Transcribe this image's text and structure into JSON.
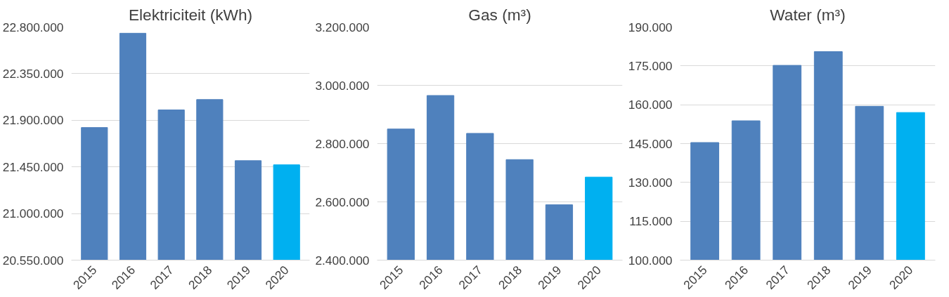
{
  "chart_data": [
    {
      "type": "bar",
      "title": "Elektriciteit (kWh)",
      "categories": [
        "2015",
        "2016",
        "2017",
        "2018",
        "2019",
        "2020"
      ],
      "values": [
        21830000,
        22740000,
        22000000,
        22100000,
        21510000,
        21470000
      ],
      "colors": [
        "#4f81bd",
        "#4f81bd",
        "#4f81bd",
        "#4f81bd",
        "#4f81bd",
        "#00b0f0"
      ],
      "ylim": [
        20550000,
        22800000
      ],
      "yticks": [
        {
          "value": 20550000,
          "label": "20.550.000"
        },
        {
          "value": 21000000,
          "label": "21.000.000"
        },
        {
          "value": 21450000,
          "label": "21.450.000"
        },
        {
          "value": 21900000,
          "label": "21.900.000"
        },
        {
          "value": 22350000,
          "label": "22.350.000"
        },
        {
          "value": 22800000,
          "label": "22.800.000"
        }
      ],
      "grid": "y"
    },
    {
      "type": "bar",
      "title": "Gas (m³)",
      "categories": [
        "2015",
        "2016",
        "2017",
        "2018",
        "2019",
        "2020"
      ],
      "values": [
        2850000,
        2965000,
        2835000,
        2745000,
        2590000,
        2685000
      ],
      "colors": [
        "#4f81bd",
        "#4f81bd",
        "#4f81bd",
        "#4f81bd",
        "#4f81bd",
        "#00b0f0"
      ],
      "ylim": [
        2400000,
        3200000
      ],
      "yticks": [
        {
          "value": 2400000,
          "label": "2.400.000"
        },
        {
          "value": 2600000,
          "label": "2.600.000"
        },
        {
          "value": 2800000,
          "label": "2.800.000"
        },
        {
          "value": 3000000,
          "label": "3.000.000"
        },
        {
          "value": 3200000,
          "label": "3.200.000"
        }
      ],
      "grid": "y"
    },
    {
      "type": "bar",
      "title": "Water (m³)",
      "categories": [
        "2015",
        "2016",
        "2017",
        "2018",
        "2019",
        "2020"
      ],
      "values": [
        145400,
        153800,
        175200,
        180500,
        159400,
        157000
      ],
      "colors": [
        "#4f81bd",
        "#4f81bd",
        "#4f81bd",
        "#4f81bd",
        "#4f81bd",
        "#00b0f0"
      ],
      "ylim": [
        100000,
        190000
      ],
      "yticks": [
        {
          "value": 100000,
          "label": "100.000"
        },
        {
          "value": 115000,
          "label": "115.000"
        },
        {
          "value": 130000,
          "label": "130.000"
        },
        {
          "value": 145000,
          "label": "145.000"
        },
        {
          "value": 160000,
          "label": "160.000"
        },
        {
          "value": 175000,
          "label": "175.000"
        },
        {
          "value": 190000,
          "label": "190.000"
        }
      ],
      "grid": "y"
    }
  ]
}
